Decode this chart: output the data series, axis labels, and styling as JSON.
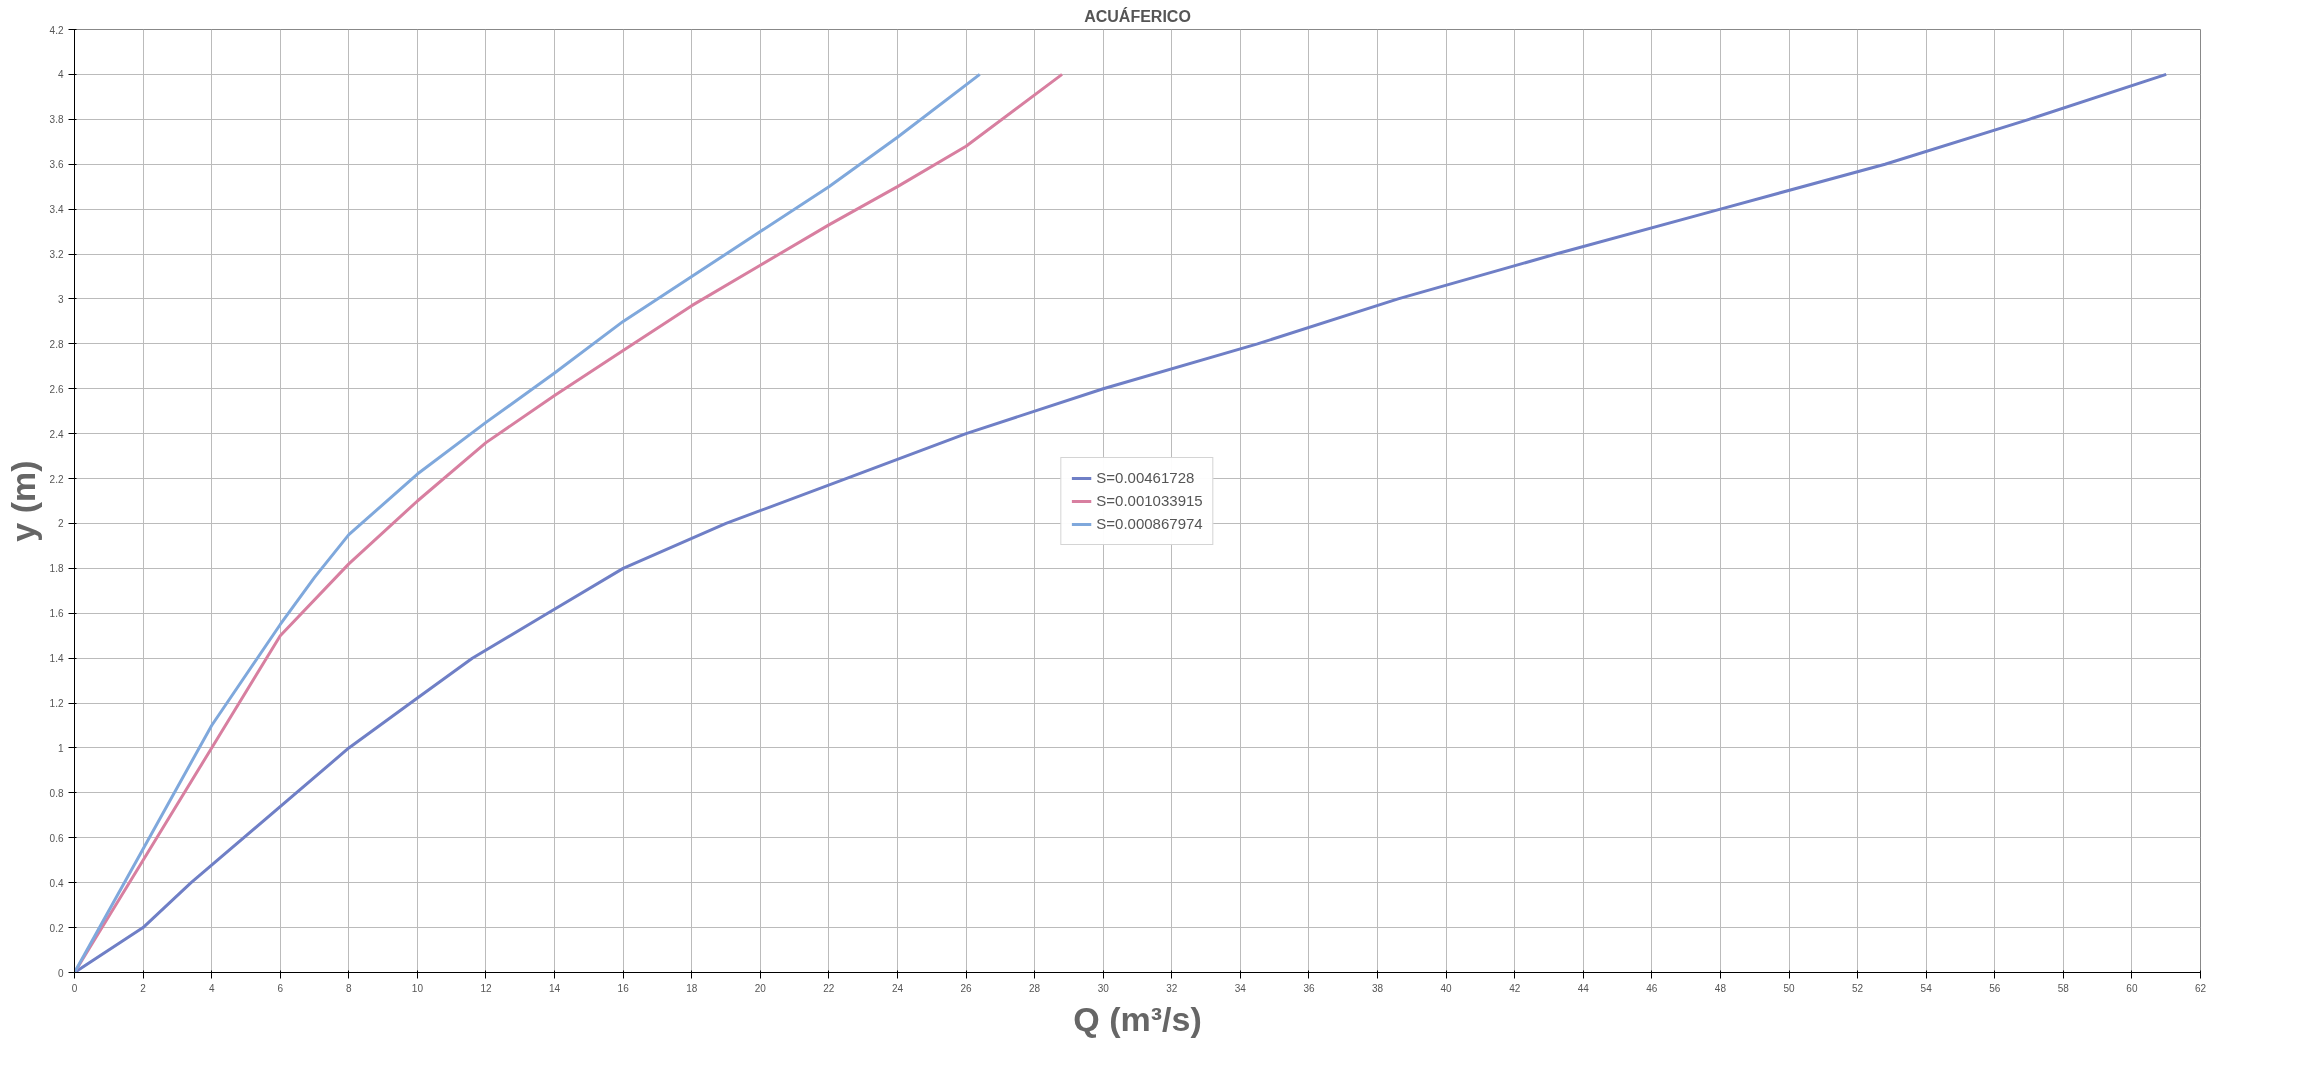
{
  "chart_data": {
    "type": "line",
    "title": "ACUÁFERICO",
    "xlabel": "Q (m³/s)",
    "ylabel": "y (m)",
    "xlim": [
      0,
      62
    ],
    "xticks": [
      0,
      2,
      4,
      6,
      8,
      10,
      12,
      14,
      16,
      18,
      20,
      22,
      24,
      26,
      28,
      30,
      32,
      34,
      36,
      38,
      40,
      42,
      44,
      46,
      48,
      50,
      52,
      54,
      56,
      58,
      60,
      62
    ],
    "ylim": [
      0,
      4.2
    ],
    "yticks": [
      0,
      0.2,
      0.4,
      0.6,
      0.8,
      1,
      1.2,
      1.4,
      1.6,
      1.8,
      2,
      2.2,
      2.4,
      2.6,
      2.8,
      3,
      3.2,
      3.4,
      3.6,
      3.8,
      4,
      4.2
    ],
    "grid": true,
    "legend": "center",
    "line_style": "solid",
    "series": [
      {
        "name": "S=0.00461728",
        "color": "#6f7fc6",
        "x": [
          0,
          2,
          3.4,
          8,
          9.8,
          11.6,
          13.8,
          16,
          19,
          22.5,
          26,
          30,
          34.5,
          38.6,
          43.2,
          48,
          52.8,
          57,
          61
        ],
        "values": [
          0,
          0.2,
          0.4,
          1,
          1.2,
          1.4,
          1.6,
          1.8,
          2,
          2.2,
          2.4,
          2.6,
          2.8,
          3,
          3.2,
          3.4,
          3.6,
          3.8,
          4
        ]
      },
      {
        "name": "S=0.001033915",
        "color": "#d87fa0",
        "x": [
          0,
          2,
          4,
          6,
          8,
          10,
          12,
          14,
          16,
          18,
          20,
          22,
          24,
          26,
          28.8
        ],
        "values": [
          0,
          0.5,
          1,
          1.5,
          1.82,
          2.1,
          2.36,
          2.57,
          2.77,
          2.97,
          3.15,
          3.33,
          3.5,
          3.68,
          4
        ]
      },
      {
        "name": "S=0.000867974",
        "color": "#7fa8dc",
        "x": [
          0,
          2,
          4,
          6,
          7,
          8,
          10,
          12,
          14,
          16,
          18,
          20,
          22,
          24,
          26.4
        ],
        "values": [
          0,
          0.55,
          1.1,
          1.55,
          1.76,
          1.95,
          2.22,
          2.45,
          2.67,
          2.9,
          3.1,
          3.3,
          3.5,
          3.72,
          4
        ]
      }
    ]
  }
}
